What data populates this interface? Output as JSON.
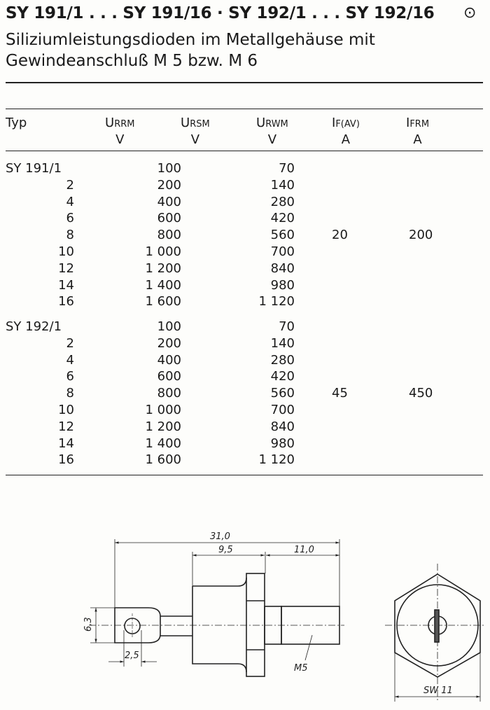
{
  "header": {
    "title": "SY 191/1 . . . SY 191/16 · SY 192/1 . . . SY 192/16",
    "marker": "⊙",
    "subtitle_line1": "Siliziumleistungsdioden im Metallgehäuse mit",
    "subtitle_line2": "Gewindeanschluß M 5 bzw. M 6"
  },
  "table": {
    "columns": [
      {
        "symbol": "Typ",
        "sub": "",
        "unit": ""
      },
      {
        "symbol": "U",
        "sub": "RRM",
        "unit": "V"
      },
      {
        "symbol": "U",
        "sub": "RSM",
        "unit": "V"
      },
      {
        "symbol": "U",
        "sub": "RWM",
        "unit": "V"
      },
      {
        "symbol": "I",
        "sub": "F(AV)",
        "unit": "A"
      },
      {
        "symbol": "I",
        "sub": "FRM",
        "unit": "A"
      }
    ],
    "groups": [
      {
        "if_av": "20",
        "ifrm": "200",
        "rows": [
          {
            "typ": "SY 191/1",
            "v1": "100",
            "v2": "70"
          },
          {
            "typ": "2",
            "v1": "200",
            "v2": "140"
          },
          {
            "typ": "4",
            "v1": "400",
            "v2": "280"
          },
          {
            "typ": "6",
            "v1": "600",
            "v2": "420"
          },
          {
            "typ": "8",
            "v1": "800",
            "v2": "560"
          },
          {
            "typ": "10",
            "v1": "1 000",
            "v2": "700"
          },
          {
            "typ": "12",
            "v1": "1 200",
            "v2": "840"
          },
          {
            "typ": "14",
            "v1": "1 400",
            "v2": "980"
          },
          {
            "typ": "16",
            "v1": "1 600",
            "v2": "1 120"
          }
        ]
      },
      {
        "if_av": "45",
        "ifrm": "450",
        "rows": [
          {
            "typ": "SY 192/1",
            "v1": "100",
            "v2": "70"
          },
          {
            "typ": "2",
            "v1": "200",
            "v2": "140"
          },
          {
            "typ": "4",
            "v1": "400",
            "v2": "280"
          },
          {
            "typ": "6",
            "v1": "600",
            "v2": "420"
          },
          {
            "typ": "8",
            "v1": "800",
            "v2": "560"
          },
          {
            "typ": "10",
            "v1": "1 000",
            "v2": "700"
          },
          {
            "typ": "12",
            "v1": "1 200",
            "v2": "840"
          },
          {
            "typ": "14",
            "v1": "1 400",
            "v2": "980"
          },
          {
            "typ": "16",
            "v1": "1 600",
            "v2": "1 120"
          }
        ]
      }
    ]
  },
  "drawing": {
    "dim_total": "31,0",
    "dim_body": "9,5",
    "dim_thread": "11,0",
    "dim_lug_height": "6,3",
    "dim_hole": "2,5",
    "thread_label": "M5",
    "wrench_label": "SW 11"
  }
}
